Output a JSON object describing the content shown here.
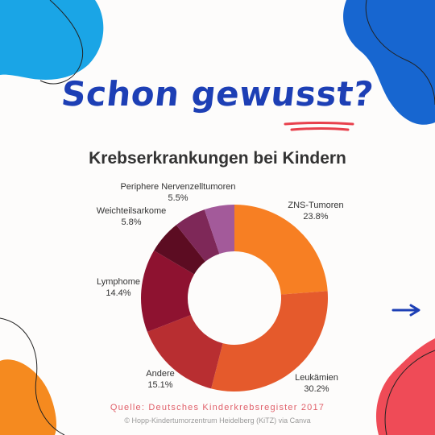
{
  "header": {
    "headline": "Schon gewusst?"
  },
  "footer": {
    "source": "Quelle: Deutsches Kinderkrebsregister 2017",
    "credit": "© Hopp-Kindertumorzentrum Heidelberg (KiTZ) via Canva"
  },
  "colors": {
    "headline": "#1d3fb5",
    "blob_light_blue": "#1aa5e6",
    "blob_dark_blue": "#1766d0",
    "blob_orange": "#f58a1f",
    "blob_red": "#ef4b57",
    "accent_red": "#e8404c"
  },
  "icons": [
    "arrow-right-icon"
  ],
  "chart_data": {
    "type": "pie",
    "title": "Krebserkrankungen bei Kindern",
    "donut": true,
    "slices": [
      {
        "label": "ZNS-Tumoren",
        "value": 23.8,
        "display": "23.8%",
        "color": "#f77f23"
      },
      {
        "label": "Leukämien",
        "value": 30.2,
        "display": "30.2%",
        "color": "#e55a2c"
      },
      {
        "label": "Andere",
        "value": 15.1,
        "display": "15.1%",
        "color": "#b82e31"
      },
      {
        "label": "Lymphome",
        "value": 14.4,
        "display": "14.4%",
        "color": "#8e1230"
      },
      {
        "label": "Weichteilsarkome",
        "value": 5.8,
        "display": "5.8%",
        "color": "#5c0c22"
      },
      {
        "label": "Periphere Nervenzelltumoren",
        "value": 5.5,
        "display": "5.5%",
        "color": "#7e2858"
      },
      {
        "label": "",
        "value": 5.2,
        "display": "",
        "color": "#a35a9a"
      }
    ]
  }
}
